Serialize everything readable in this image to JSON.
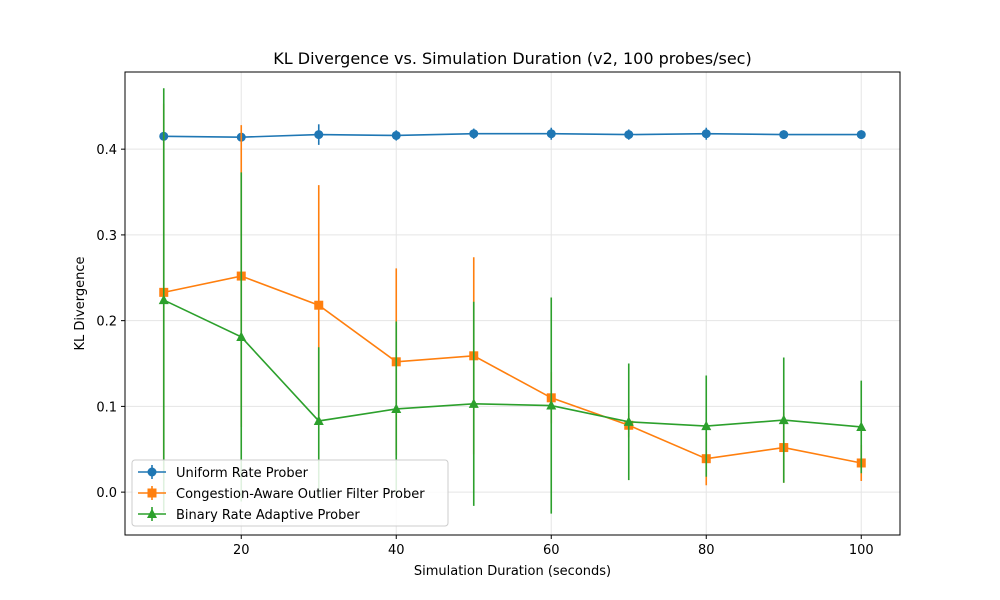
{
  "chart_data": {
    "type": "line",
    "title": "KL Divergence vs. Simulation Duration (v2, 100 probes/sec)",
    "xlabel": "Simulation Duration (seconds)",
    "ylabel": "KL Divergence",
    "xlim": [
      5,
      105
    ],
    "ylim": [
      -0.05,
      0.49
    ],
    "x_ticks": [
      20,
      40,
      60,
      80,
      100
    ],
    "y_ticks": [
      0.0,
      0.1,
      0.2,
      0.3,
      0.4
    ],
    "x_tick_labels": [
      "20",
      "40",
      "60",
      "80",
      "100"
    ],
    "y_tick_labels": [
      "0.0",
      "0.1",
      "0.2",
      "0.3",
      "0.4"
    ],
    "grid": true,
    "legend_position": "lower-left",
    "x": [
      10,
      20,
      30,
      40,
      50,
      60,
      70,
      80,
      90,
      100
    ],
    "series": [
      {
        "name": "Uniform Rate Prober",
        "color": "#1f77b4",
        "marker": "circle",
        "values": [
          0.415,
          0.414,
          0.417,
          0.416,
          0.418,
          0.418,
          0.417,
          0.418,
          0.417,
          0.417
        ],
        "error": [
          0.005,
          0.004,
          0.012,
          0.006,
          0.006,
          0.007,
          0.006,
          0.007,
          0.005,
          0.005
        ]
      },
      {
        "name": "Congestion-Aware Outlier Filter Prober",
        "color": "#ff7f0e",
        "marker": "square",
        "values": [
          0.233,
          0.252,
          0.218,
          0.152,
          0.159,
          0.11,
          0.078,
          0.039,
          0.052,
          0.034
        ],
        "error": [
          0.22,
          0.176,
          0.14,
          0.109,
          0.115,
          0.03,
          0.014,
          0.031,
          0.041,
          0.021
        ]
      },
      {
        "name": "Binary Rate Adaptive Prober",
        "color": "#2ca02c",
        "marker": "triangle",
        "values": [
          0.224,
          0.181,
          0.083,
          0.097,
          0.103,
          0.101,
          0.082,
          0.077,
          0.084,
          0.076
        ],
        "error": [
          0.247,
          0.192,
          0.086,
          0.102,
          0.119,
          0.126,
          0.068,
          0.059,
          0.073,
          0.054
        ]
      }
    ]
  }
}
